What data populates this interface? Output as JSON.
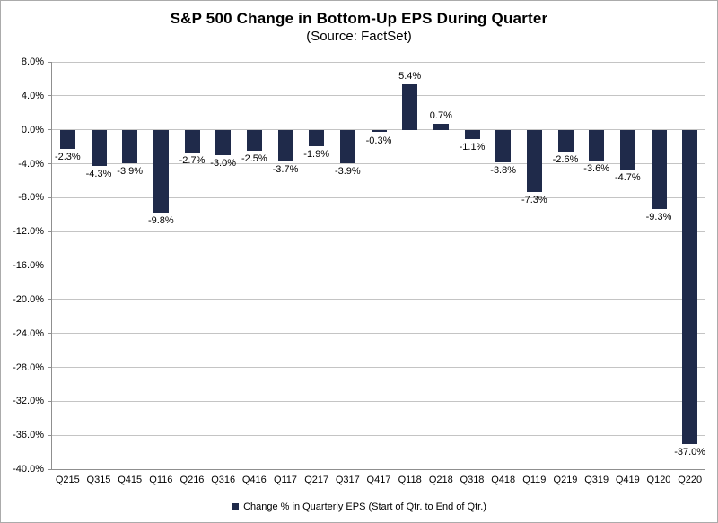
{
  "chart_data": {
    "type": "bar",
    "title": "S&P 500 Change in Bottom-Up EPS During Quarter",
    "subtitle": "(Source: FactSet)",
    "categories": [
      "Q215",
      "Q315",
      "Q415",
      "Q116",
      "Q216",
      "Q316",
      "Q416",
      "Q117",
      "Q217",
      "Q317",
      "Q417",
      "Q118",
      "Q218",
      "Q318",
      "Q418",
      "Q119",
      "Q219",
      "Q319",
      "Q419",
      "Q120",
      "Q220"
    ],
    "values": [
      -2.3,
      -4.3,
      -3.9,
      -9.8,
      -2.7,
      -3.0,
      -2.5,
      -3.7,
      -1.9,
      -3.9,
      -0.3,
      5.4,
      0.7,
      -1.1,
      -3.8,
      -7.3,
      -2.6,
      -3.6,
      -4.7,
      -9.3,
      -37.0
    ],
    "value_labels": [
      "-2.3%",
      "-4.3%",
      "-3.9%",
      "-9.8%",
      "-2.7%",
      "-3.0%",
      "-2.5%",
      "-3.7%",
      "-1.9%",
      "-3.9%",
      "-0.3%",
      "5.4%",
      "0.7%",
      "-1.1%",
      "-3.8%",
      "-7.3%",
      "-2.6%",
      "-3.6%",
      "-4.7%",
      "-9.3%",
      "-37.0%"
    ],
    "ytick_labels": [
      "8.0%",
      "4.0%",
      "0.0%",
      "-4.0%",
      "-8.0%",
      "-12.0%",
      "-16.0%",
      "-20.0%",
      "-24.0%",
      "-28.0%",
      "-32.0%",
      "-36.0%",
      "-40.0%"
    ],
    "yticks": [
      8,
      4,
      0,
      -4,
      -8,
      -12,
      -16,
      -20,
      -24,
      -28,
      -32,
      -36,
      -40
    ],
    "ylim": [
      -40,
      8
    ],
    "xlabel": "",
    "ylabel": "",
    "grid": "horizontal",
    "legend_position": "bottom",
    "legend": "Change % in Quarterly EPS (Start of Qtr. to End of Qtr.)",
    "bar_color": "#1f2a4a",
    "gridline_color": "#c4c4c4",
    "axis_color": "#8f8f8f"
  }
}
